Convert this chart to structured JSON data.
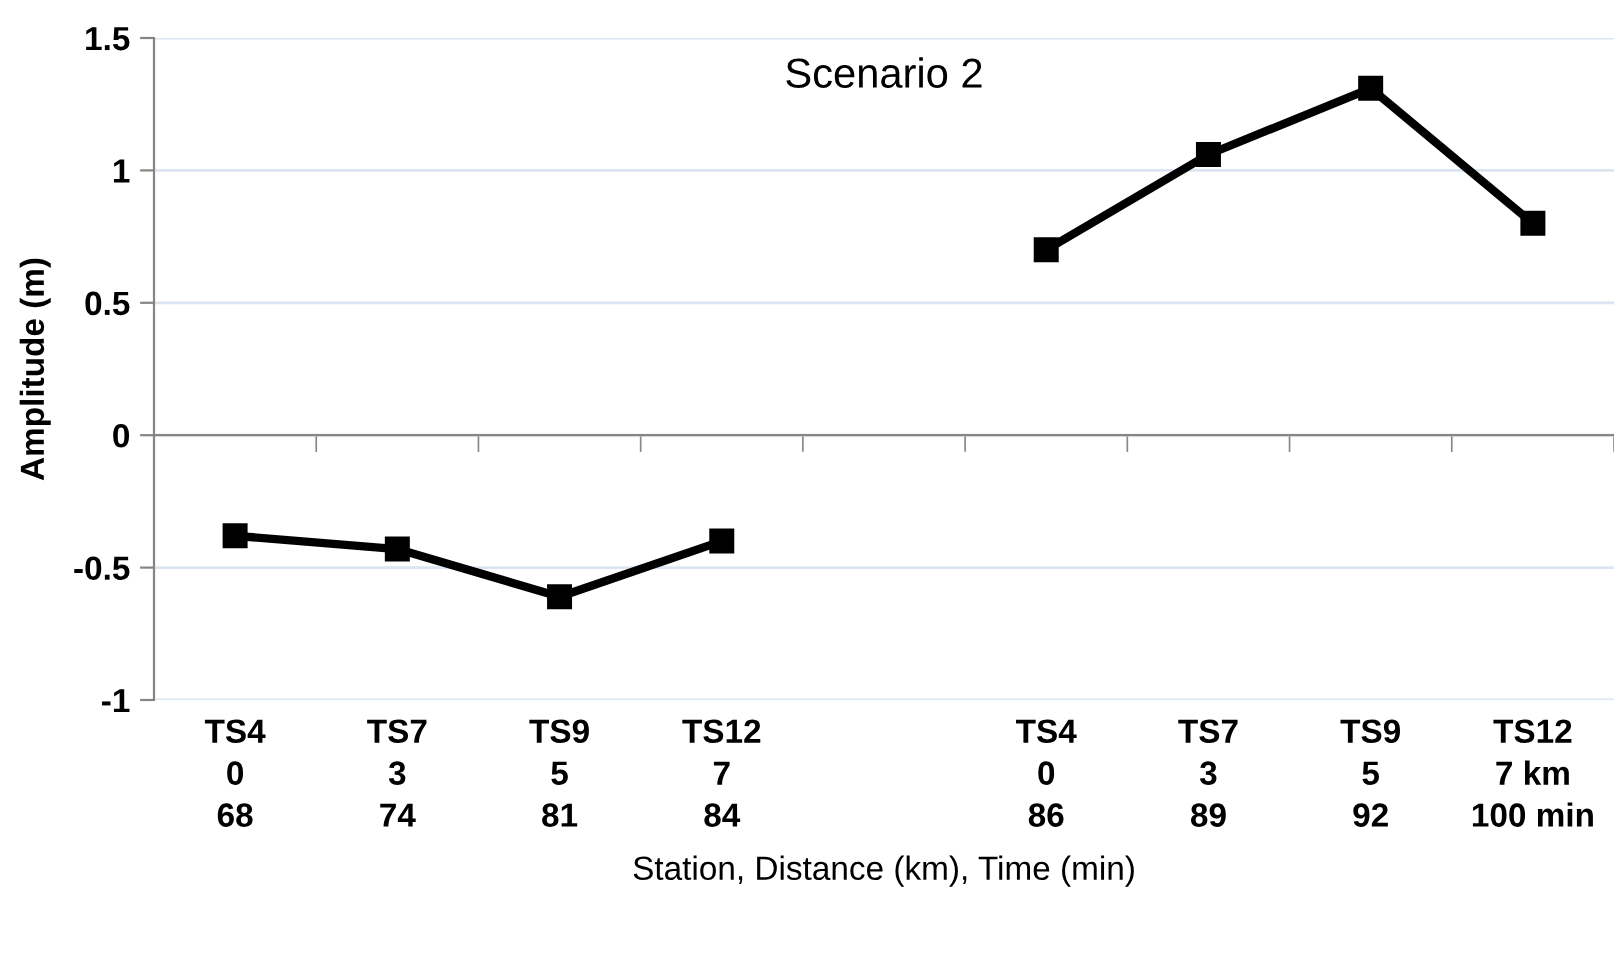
{
  "chart_data": {
    "type": "line",
    "title": "Scenario 2",
    "xlabel": "Station, Distance (km), Time (min)",
    "ylabel": "Amplitude (m)",
    "categories": [
      "TS4\n0\n68",
      "TS7\n3\n74",
      "TS9\n5\n81",
      "TS12\n7\n84",
      null,
      "TS4\n0\n86",
      "TS7\n3\n89",
      "TS9\n5\n92",
      "TS12\n7 km\n100 min"
    ],
    "series": [
      {
        "color": "#000000",
        "values": [
          -0.38,
          -0.43,
          -0.61,
          -0.4,
          null,
          0.7,
          1.06,
          1.31,
          0.8
        ]
      }
    ],
    "ylim": [
      -1,
      1.5
    ],
    "yticks": [
      -1,
      -0.5,
      0,
      0.5,
      1,
      1.5
    ],
    "grid": "y",
    "marker": "square",
    "line_style": "solid"
  }
}
